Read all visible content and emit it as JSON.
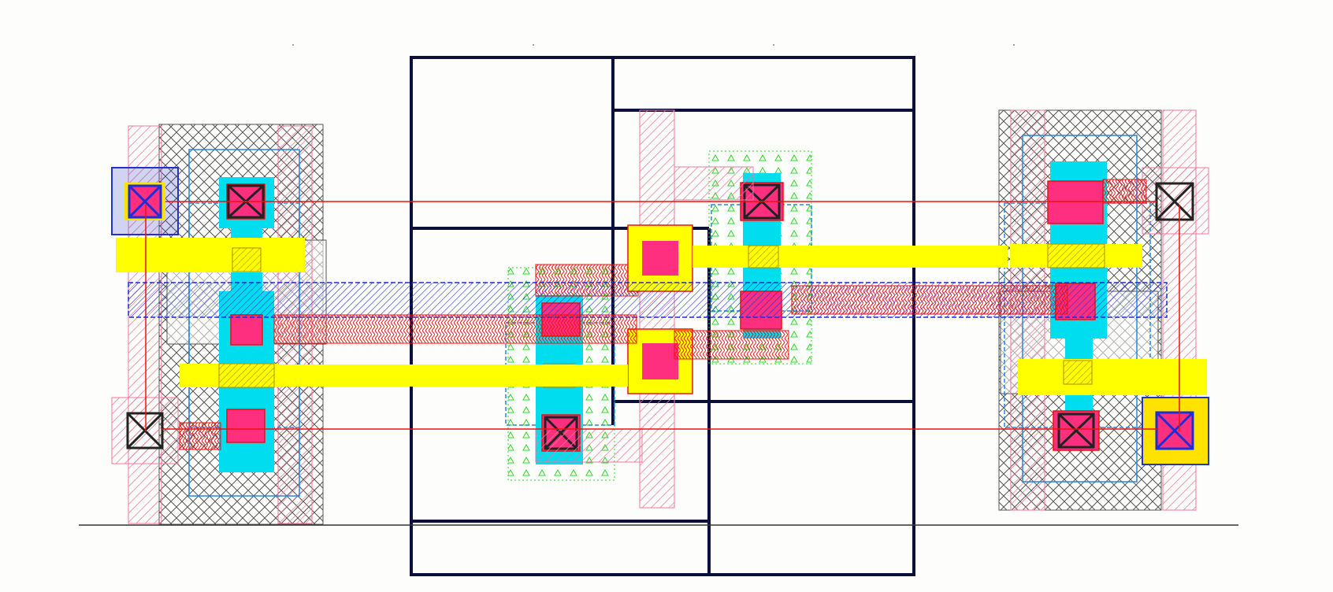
{
  "layout_view": {
    "title": "",
    "colors": {
      "background": "#fdfdfb",
      "poly": "#ffff00",
      "active": "#00ddee",
      "contact_fill": "#ff2f7f",
      "metal1": "#ee1111",
      "metal2": "#1a2fd8",
      "nwell_outline": "#555555",
      "pwell_hatch": "#e87aa0",
      "implant_green": "#22dd22",
      "cell_frame": "#0b0f3a",
      "via_box": "#2233cc",
      "baseline": "#333333"
    },
    "layers": [
      "poly",
      "active",
      "contact",
      "metal1",
      "metal2",
      "nwell",
      "pwell",
      "implant",
      "cell-frame",
      "via"
    ]
  }
}
